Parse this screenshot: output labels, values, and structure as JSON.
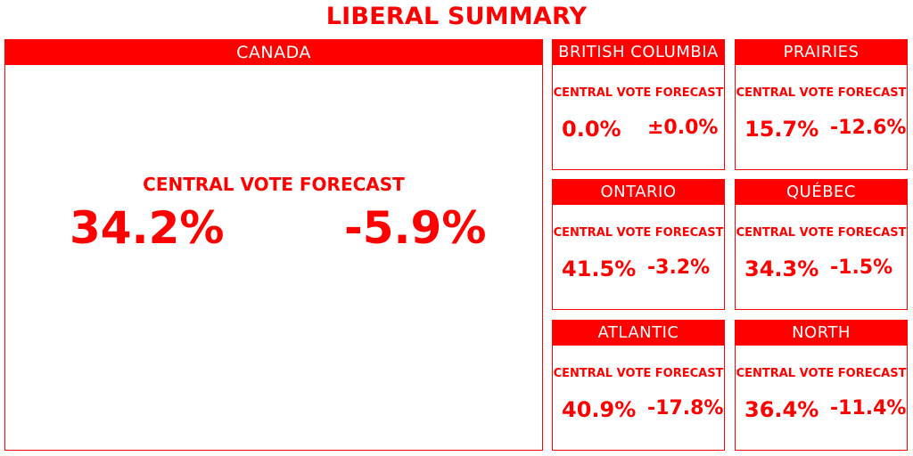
{
  "title": "LIBERAL SUMMARY",
  "accent_color": "#ff0000",
  "canada": {
    "header": "CANADA",
    "label": "CENTRAL VOTE FORECAST",
    "value": "34.2%",
    "change": "-5.9%"
  },
  "regions": {
    "bc": {
      "header": "BRITISH COLUMBIA",
      "label": "CENTRAL VOTE FORECAST",
      "value": "0.0%",
      "change": "±0.0%"
    },
    "prairies": {
      "header": "PRAIRIES",
      "label": "CENTRAL VOTE FORECAST",
      "value": "15.7%",
      "change": "-12.6%"
    },
    "ontario": {
      "header": "ONTARIO",
      "label": "CENTRAL VOTE FORECAST",
      "value": "41.5%",
      "change": "-3.2%"
    },
    "quebec": {
      "header": "QUÉBEC",
      "label": "CENTRAL VOTE FORECAST",
      "value": "34.3%",
      "change": "-1.5%"
    },
    "atlantic": {
      "header": "ATLANTIC",
      "label": "CENTRAL VOTE FORECAST",
      "value": "40.9%",
      "change": "-17.8%"
    },
    "north": {
      "header": "NORTH",
      "label": "CENTRAL VOTE FORECAST",
      "value": "36.4%",
      "change": "-11.4%"
    }
  }
}
